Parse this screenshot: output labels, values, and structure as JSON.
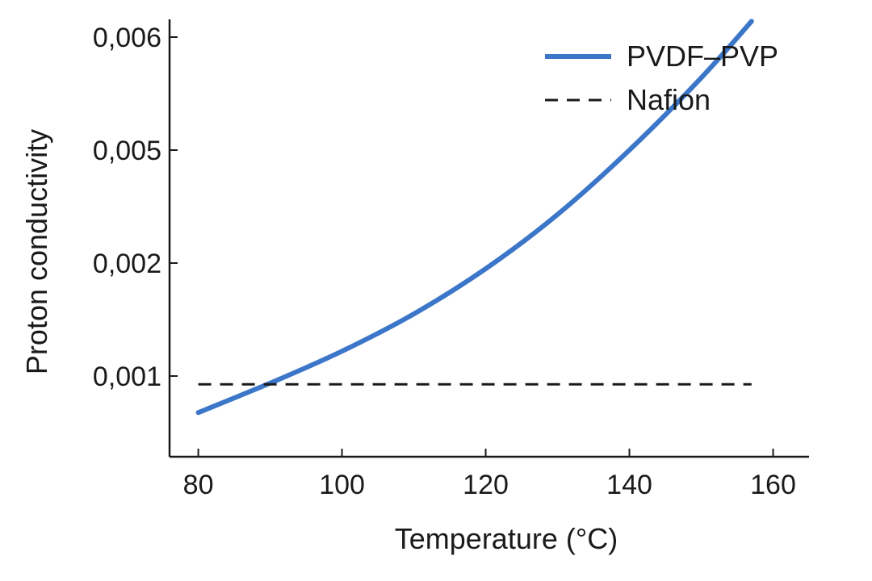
{
  "chart_data": {
    "type": "line",
    "title": "",
    "xlabel": "Temperature (°C)",
    "ylabel": "Proton conductivity",
    "xlim": [
      76,
      165
    ],
    "x_ticks": [
      80,
      100,
      120,
      140,
      160
    ],
    "y_tick_labels": [
      "0,001",
      "0,002",
      "0,005",
      "0,006"
    ],
    "y_scale_note": "tick labels evenly spaced (non-linear labeling); series values below are read against these labeled gridline positions",
    "legend": {
      "position": "top-right",
      "entries": [
        "PVDF–PVP",
        "Nafion"
      ]
    },
    "grid": false,
    "series": [
      {
        "name": "PVDF–PVP",
        "color": "#3b76c9",
        "style": "solid",
        "x": [
          80,
          90,
          100,
          110,
          120,
          130,
          140,
          150,
          157
        ],
        "y_level": [
          0.69,
          0.94,
          1.22,
          1.55,
          1.95,
          2.43,
          3.0,
          3.64,
          4.14
        ]
      },
      {
        "name": "Nafion",
        "color": "#1a1a1a",
        "style": "dashed",
        "x": [
          80,
          157
        ],
        "y_level": [
          0.93,
          0.93
        ]
      }
    ]
  }
}
